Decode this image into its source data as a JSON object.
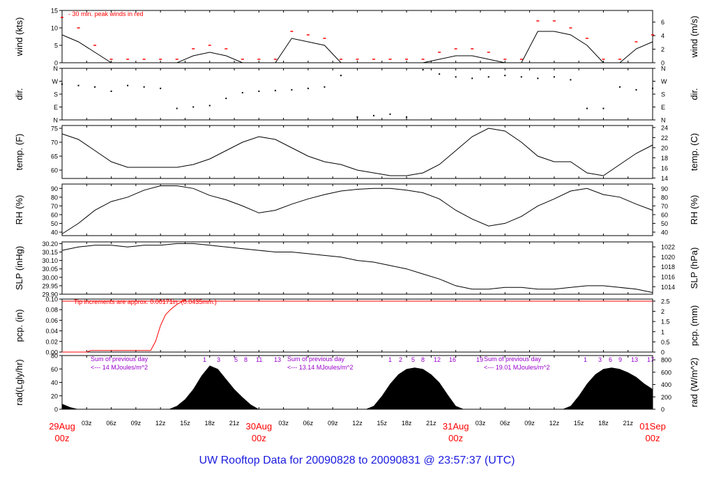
{
  "title": "UW Rooftop Data for 20090828  to  20090831 @ 23:57:37  (UTC)",
  "colors": {
    "data": "#000000",
    "peak": "#ff0000",
    "precip": "#ff0000",
    "date": "#ff0000",
    "note_red": "#ff0000",
    "note_purple": "#9900cc",
    "title": "#1a1ae0"
  },
  "x_axis": {
    "time_ticks": [
      "03z",
      "06z",
      "09z",
      "12z",
      "15z",
      "18z",
      "21z",
      "",
      "03z",
      "06z",
      "09z",
      "12z",
      "15z",
      "18z",
      "21z",
      "",
      "03z",
      "06z",
      "09z",
      "12z",
      "15z",
      "18z",
      "21z"
    ],
    "date_labels": [
      {
        "day": "29Aug",
        "hour": "00z"
      },
      {
        "day": "30Aug",
        "hour": "00z"
      },
      {
        "day": "31Aug",
        "hour": "00z"
      },
      {
        "day": "01Sep",
        "hour": "00z"
      }
    ]
  },
  "panels": {
    "wind": {
      "left_label": "wind (kts)",
      "right_label": "wind (m/s)",
      "note": "-  30 min. peak winds in red",
      "left_ticks": [
        "0",
        "5",
        "10",
        "15"
      ],
      "right_ticks": [
        "0",
        "2",
        "4",
        "6"
      ]
    },
    "dir": {
      "left_label": "dir.",
      "right_label": "dir.",
      "ticks": [
        "N",
        "E",
        "S",
        "W",
        "N"
      ]
    },
    "temp": {
      "left_label": "temp. (F)",
      "right_label": "temp. (C)",
      "left_ticks": [
        "60",
        "65",
        "70",
        "75"
      ],
      "right_ticks": [
        "14",
        "16",
        "18",
        "20",
        "22",
        "24"
      ]
    },
    "rh": {
      "left_label": "RH (%)",
      "right_label": "RH (%)",
      "left_ticks": [
        "40",
        "50",
        "60",
        "70",
        "80",
        "90"
      ],
      "right_ticks": [
        "40",
        "50",
        "60",
        "70",
        "80",
        "90"
      ]
    },
    "slp": {
      "left_label": "SLP (inHg)",
      "right_label": "SLP (hPa)",
      "left_ticks": [
        "29.90",
        "29.95",
        "30.00",
        "30.05",
        "30.10",
        "30.15",
        "30.20"
      ],
      "right_ticks": [
        "1014",
        "1016",
        "1018",
        "1020",
        "1022"
      ]
    },
    "pcp": {
      "left_label": "pcp. (in)",
      "right_label": "pcp. (mm)",
      "note": "Tip increments are approx. 0.00171in. (0.0435mm.)",
      "left_ticks": [
        "0.00",
        "0.02",
        "0.04",
        "0.06",
        "0.08",
        "0.10"
      ],
      "right_ticks": [
        "0",
        "0.5",
        "1",
        "1.5",
        "2",
        "2.5"
      ]
    },
    "rad": {
      "left_label": "rad(Lgly/hr)",
      "right_label": "rad (W/m^2)",
      "left_ticks": [
        "0",
        "20",
        "40",
        "60",
        "80"
      ],
      "right_ticks": [
        "0",
        "200",
        "400",
        "600",
        "800"
      ],
      "notes": [
        {
          "line1": "Sum of previous day",
          "line2": "<--- 14 MJoules/m^2"
        },
        {
          "line1": "Sum of previous day",
          "line2": "<--- 13.14 MJoules/m^2"
        },
        {
          "line1": "Sum of previous day",
          "line2": "<--- 19.01 MJoules/m^2"
        }
      ],
      "hour_marks": [
        [
          "1",
          "3",
          "5",
          "8",
          "11",
          "13"
        ],
        [
          "1",
          "2",
          "5",
          "8",
          "12",
          "16",
          "19"
        ],
        [
          "1",
          "3",
          "6",
          "9",
          "13",
          "17"
        ]
      ]
    }
  },
  "chart_data": [
    {
      "type": "line",
      "name": "wind speed",
      "unit": "kts",
      "ylim": [
        0,
        15
      ],
      "x_hours": [
        0,
        2,
        4,
        6,
        8,
        10,
        12,
        14,
        16,
        18,
        20,
        22,
        24,
        26,
        28,
        30,
        32,
        34,
        36,
        38,
        40,
        42,
        44,
        46,
        48,
        50,
        52,
        54,
        56,
        58,
        60,
        62,
        64,
        66,
        68,
        70,
        72
      ],
      "values": [
        8,
        6,
        3,
        0,
        0,
        0,
        0,
        0,
        2,
        3,
        2,
        0,
        0,
        0,
        7,
        6,
        5,
        0,
        0,
        0,
        0,
        0,
        0,
        1,
        2,
        2,
        1,
        0,
        0,
        9,
        9,
        8,
        5,
        0,
        0,
        4,
        6
      ],
      "peak": [
        13,
        10,
        5,
        1,
        1,
        1,
        1,
        1,
        4,
        5,
        4,
        1,
        1,
        1,
        9,
        8,
        7,
        1,
        1,
        1,
        1,
        1,
        1,
        3,
        4,
        4,
        3,
        1,
        1,
        12,
        12,
        10,
        7,
        1,
        1,
        6,
        8
      ]
    },
    {
      "type": "scatter",
      "name": "wind direction",
      "unit": "deg",
      "ylim": [
        0,
        360
      ],
      "x_hours": [
        0,
        2,
        4,
        6,
        8,
        10,
        12,
        14,
        16,
        18,
        20,
        22,
        24,
        26,
        28,
        30,
        32,
        34,
        36,
        38,
        40,
        42,
        44,
        46,
        48,
        50,
        52,
        54,
        56,
        58,
        60,
        62,
        64,
        66,
        68,
        70,
        72
      ],
      "values": [
        250,
        240,
        230,
        200,
        240,
        230,
        220,
        80,
        90,
        100,
        150,
        190,
        200,
        205,
        210,
        220,
        230,
        310,
        20,
        30,
        40,
        20,
        350,
        320,
        300,
        290,
        300,
        310,
        300,
        290,
        300,
        280,
        80,
        80,
        230,
        210,
        220
      ]
    },
    {
      "type": "line",
      "name": "temperature",
      "unit": "F",
      "ylim": [
        57,
        76
      ],
      "x_hours": [
        0,
        2,
        4,
        6,
        8,
        10,
        12,
        14,
        16,
        18,
        20,
        22,
        24,
        26,
        28,
        30,
        32,
        34,
        36,
        38,
        40,
        42,
        44,
        46,
        48,
        50,
        52,
        54,
        56,
        58,
        60,
        62,
        64,
        66,
        68,
        70,
        72
      ],
      "values": [
        73,
        71,
        67,
        63,
        61,
        61,
        61,
        61,
        62,
        64,
        67,
        70,
        72,
        71,
        68,
        65,
        63,
        62,
        60,
        59,
        58,
        58,
        59,
        62,
        67,
        72,
        75,
        74,
        70,
        65,
        63,
        63,
        59,
        58,
        62,
        66,
        69
      ]
    },
    {
      "type": "line",
      "name": "relative humidity",
      "unit": "%",
      "ylim": [
        36,
        95
      ],
      "x_hours": [
        0,
        2,
        4,
        6,
        8,
        10,
        12,
        14,
        16,
        18,
        20,
        22,
        24,
        26,
        28,
        30,
        32,
        34,
        36,
        38,
        40,
        42,
        44,
        46,
        48,
        50,
        52,
        54,
        56,
        58,
        60,
        62,
        64,
        66,
        68,
        70,
        72
      ],
      "values": [
        38,
        50,
        65,
        75,
        80,
        88,
        93,
        93,
        90,
        82,
        77,
        70,
        62,
        65,
        72,
        78,
        83,
        87,
        89,
        90,
        90,
        88,
        85,
        78,
        65,
        55,
        47,
        50,
        58,
        70,
        78,
        87,
        90,
        83,
        80,
        72,
        65
      ]
    },
    {
      "type": "line",
      "name": "sea level pressure",
      "unit": "inHg",
      "ylim": [
        29.9,
        30.21
      ],
      "x_hours": [
        0,
        2,
        4,
        6,
        8,
        10,
        12,
        14,
        16,
        18,
        20,
        22,
        24,
        26,
        28,
        30,
        32,
        34,
        36,
        38,
        40,
        42,
        44,
        46,
        48,
        50,
        52,
        54,
        56,
        58,
        60,
        62,
        64,
        66,
        68,
        70,
        72
      ],
      "values": [
        30.16,
        30.18,
        30.19,
        30.19,
        30.18,
        30.19,
        30.19,
        30.2,
        30.2,
        30.19,
        30.18,
        30.17,
        30.16,
        30.15,
        30.15,
        30.14,
        30.13,
        30.12,
        30.1,
        30.09,
        30.07,
        30.05,
        30.02,
        29.99,
        29.95,
        29.93,
        29.93,
        29.94,
        29.94,
        29.93,
        29.93,
        29.94,
        29.95,
        29.95,
        29.94,
        29.93,
        29.91
      ]
    },
    {
      "type": "line",
      "name": "precipitation accumulated",
      "unit": "in",
      "ylim": [
        0,
        0.1
      ],
      "x_hours": [
        0,
        3,
        3.5,
        7,
        8,
        10,
        10.8,
        11.4,
        12,
        12.6,
        13.2,
        14,
        14.6,
        15
      ],
      "values": [
        0,
        0,
        0.003,
        0.003,
        0.003,
        0.003,
        0.003,
        0.02,
        0.05,
        0.07,
        0.08,
        0.09,
        0.095,
        0.1
      ]
    },
    {
      "type": "area",
      "name": "solar radiation",
      "unit": "Lgly/hr",
      "ylim": [
        0,
        80
      ],
      "x_hours": [
        0,
        1,
        2,
        13,
        14,
        15,
        16,
        17,
        18,
        19,
        20,
        21,
        22,
        23,
        24,
        25,
        26,
        37,
        38,
        39,
        40,
        41,
        42,
        43,
        44,
        45,
        46,
        47,
        48,
        49,
        50,
        61,
        62,
        63,
        64,
        65,
        66,
        67,
        68,
        69,
        70,
        71,
        72
      ],
      "values": [
        8,
        3,
        0,
        0,
        5,
        15,
        30,
        50,
        65,
        60,
        45,
        30,
        18,
        7,
        0,
        0,
        0,
        0,
        5,
        20,
        38,
        52,
        60,
        62,
        60,
        52,
        40,
        22,
        5,
        0,
        0,
        0,
        5,
        20,
        38,
        52,
        60,
        62,
        60,
        55,
        48,
        38,
        30
      ]
    }
  ]
}
